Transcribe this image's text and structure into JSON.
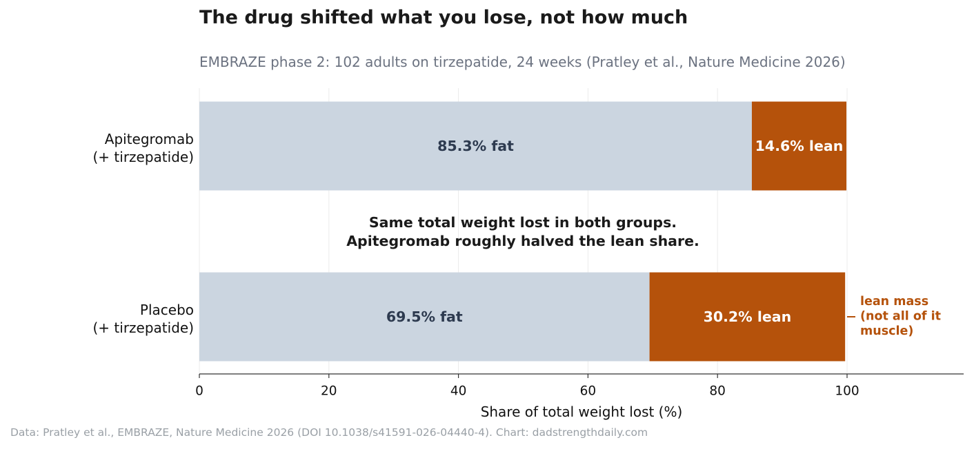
{
  "title": "The drug shifted what you lose, not how much",
  "subtitle": "EMBRAZE phase 2: 102 adults on tirzepatide, 24 weeks (Pratley et al., Nature Medicine 2026)",
  "footer": "Data: Pratley et al., EMBRAZE, Nature Medicine 2026 (DOI 10.1038/s41591-026-04440-4).  Chart: dadstrengthdaily.com",
  "colors": {
    "fat": "#cbd5e0",
    "lean": "#b5520b",
    "fat_text": "#2d3a4f",
    "lean_text": "#ffffff",
    "annotation": "#b5520b"
  },
  "chart_data": {
    "type": "bar",
    "orientation": "horizontal",
    "stacked": true,
    "categories": [
      "Apitegromab\n(+ tirzepatide)",
      "Placebo\n(+ tirzepatide)"
    ],
    "series": [
      {
        "key": "fat",
        "values": [
          85.3,
          69.5
        ],
        "data_labels": [
          "85.3% fat",
          "69.5% fat"
        ]
      },
      {
        "key": "lean",
        "values": [
          14.6,
          30.2
        ],
        "data_labels": [
          "14.6% lean",
          "30.2% lean"
        ]
      }
    ],
    "xlabel": "Share of total weight lost (%)",
    "ylabel": "",
    "xlim": [
      0,
      118
    ],
    "xticks": [
      0,
      20,
      40,
      60,
      80,
      100
    ],
    "grid": "vertical",
    "center_annotation": [
      "Same total weight lost in both groups.",
      "Apitegromab roughly halved the lean share."
    ],
    "side_annotation": [
      "lean mass",
      "(not all of it",
      "muscle)"
    ]
  }
}
